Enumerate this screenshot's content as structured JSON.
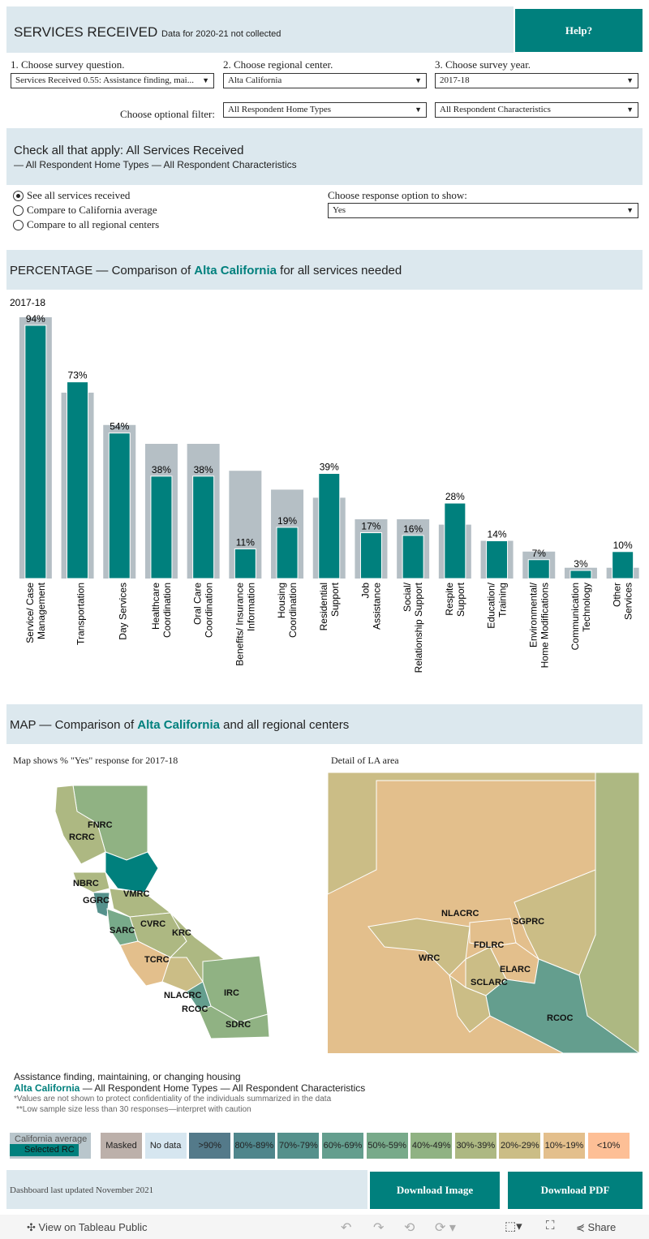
{
  "header": {
    "title": "SERVICES RECEIVED",
    "note": "Data for 2020-21 not collected",
    "help": "Help?"
  },
  "filters": {
    "q_label": "1. Choose survey question.",
    "q_value": "Services Received 0.55: Assistance finding, mai...",
    "rc_label": "2. Choose regional center.",
    "rc_value": "Alta California",
    "year_label": "3. Choose survey year.",
    "year_value": "2017-18",
    "optional_label": "Choose optional filter:",
    "home_value": "All Respondent Home Types",
    "char_value": "All Respondent Characteristics"
  },
  "check": {
    "title": "Check all that apply: All Services Received",
    "subtitle": "— All Respondent Home Types — All Respondent Characteristics"
  },
  "radios": [
    {
      "label": "See all services received",
      "checked": true
    },
    {
      "label": "Compare to California average",
      "checked": false
    },
    {
      "label": "Compare to all regional centers",
      "checked": false
    }
  ],
  "response": {
    "label": "Choose response option to show:",
    "value": "Yes"
  },
  "pct_header": {
    "pre": "PERCENTAGE — Comparison of ",
    "rc": "Alta California",
    "post": " for all services needed"
  },
  "chart_data": {
    "type": "bar",
    "title": "2017-18",
    "ylim": [
      0,
      100
    ],
    "categories": [
      "Service/ Case Management",
      "Transportation",
      "Day Services",
      "Healthcare Coordination",
      "Oral Care Coordination",
      "Benefits/ Insurance Information",
      "Housing Coordination",
      "Residential Support",
      "Job Assistance",
      "Social/ Relationship Support",
      "Respite Support",
      "Education/ Training",
      "Environmental/ Home Modifications",
      "Communication Technology",
      "Other Services"
    ],
    "series": [
      {
        "name": "Selected RC",
        "color": "#00807d",
        "values": [
          94,
          73,
          54,
          38,
          38,
          11,
          19,
          39,
          17,
          16,
          28,
          14,
          7,
          3,
          10
        ],
        "labels": [
          "94%",
          "73%",
          "54%",
          "38%",
          "38%",
          "11%",
          "19%",
          "39%",
          "17%",
          "16%",
          "28%",
          "14%",
          "7%",
          "3%",
          "10%"
        ]
      },
      {
        "name": "California average",
        "color": "#b5bfc5",
        "values": [
          97,
          69,
          57,
          50,
          50,
          40,
          33,
          30,
          22,
          22,
          20,
          14,
          10,
          4,
          4
        ]
      }
    ]
  },
  "map_header": {
    "pre": "MAP — Comparison of ",
    "rc": "Alta California",
    "post": " and all regional centers"
  },
  "map": {
    "left_title": "Map shows % \"Yes\" response for 2017-18",
    "right_title": "Detail of LA area",
    "left_labels": [
      "FNRC",
      "RCRC",
      "NBRC",
      "GGRC",
      "VMRC",
      "CVRC",
      "SARC",
      "KRC",
      "TCRC",
      "NLACRC",
      "IRC",
      "RCOC",
      "SDRC"
    ],
    "right_labels": [
      "NLACRC",
      "SGPRC",
      "FDLRC",
      "WRC",
      "ELARC",
      "SCLARC",
      "RCOC"
    ]
  },
  "caption": {
    "line1": "Assistance finding, maintaining, or changing housing",
    "rc": "Alta California",
    "line2": " — All Respondent Home Types — All Respondent Characteristics",
    "note1": "*Values are not shown to protect confidentiality of the individuals summarized in the data",
    "note2": "**Low sample size less than 30 responses—interpret with caution"
  },
  "legend": {
    "ca": "California average",
    "sel": "Selected RC",
    "items": [
      {
        "label": "Masked",
        "color": "#bcb0aa"
      },
      {
        "label": "No data",
        "color": "#d6e6f0"
      },
      {
        "label": ">90%",
        "color": "#547a8a"
      },
      {
        "label": "80%-89%",
        "color": "#4f868c"
      },
      {
        "label": "70%-79%",
        "color": "#55918c"
      },
      {
        "label": "60%-69%",
        "color": "#649e8e"
      },
      {
        "label": "50%-59%",
        "color": "#78aa8a"
      },
      {
        "label": "40%-49%",
        "color": "#90b283"
      },
      {
        "label": "30%-39%",
        "color": "#adb882"
      },
      {
        "label": "20%-29%",
        "color": "#cbbd86"
      },
      {
        "label": "10%-19%",
        "color": "#e3bf8c"
      },
      {
        "label": "<10%",
        "color": "#fdbf96"
      }
    ]
  },
  "footer": {
    "updated": "Dashboard last updated November 2021",
    "download_image": "Download Image",
    "download_pdf": "Download PDF"
  },
  "toolbar": {
    "view": "View on Tableau Public",
    "share": "Share"
  }
}
